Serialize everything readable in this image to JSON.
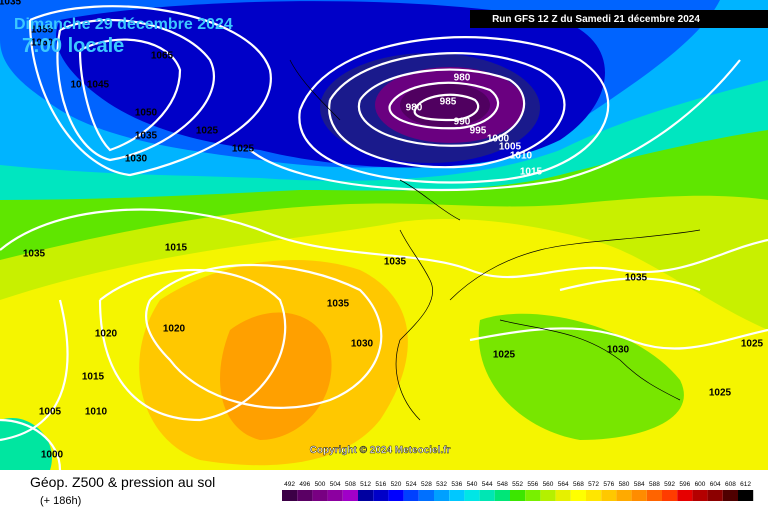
{
  "header": {
    "date": "Dimanche 29 décembre 2024",
    "time": "7:00 locale",
    "run": "Run GFS 12 Z du Samedi 21 décembre 2024"
  },
  "copyright": "Copyright © 2024 Meteociel.fr",
  "footer": {
    "title": "Géop. Z500 & pression au sol",
    "lead": "(+ 186h)"
  },
  "colorbar": {
    "values": [
      492,
      496,
      500,
      504,
      508,
      512,
      516,
      520,
      524,
      528,
      532,
      536,
      540,
      544,
      548,
      552,
      556,
      560,
      564,
      568,
      572,
      576,
      580,
      584,
      588,
      592,
      596,
      600,
      604,
      608,
      612
    ],
    "colors": [
      "#3c0046",
      "#5a0064",
      "#780082",
      "#8c00a0",
      "#a000c8",
      "#0000a0",
      "#0000c8",
      "#0000ff",
      "#0040ff",
      "#0070ff",
      "#00a0ff",
      "#00c8ff",
      "#00e6e6",
      "#00e6b4",
      "#00e678",
      "#3ce600",
      "#78f000",
      "#b4f000",
      "#e6f000",
      "#ffff00",
      "#ffe600",
      "#ffc800",
      "#ffaa00",
      "#ff8c00",
      "#ff6400",
      "#ff3c00",
      "#e60000",
      "#b40000",
      "#8c0000",
      "#500000",
      "#000000"
    ]
  },
  "isobar_labels": [
    "1035",
    "1055",
    "1060",
    "1065",
    "10",
    "1045",
    "1050",
    "1035",
    "1030",
    "1025",
    "1025",
    "980",
    "980",
    "985",
    "990",
    "995",
    "1000",
    "1005",
    "1010",
    "1015",
    "1035",
    "1015",
    "1035",
    "1035",
    "1035",
    "1020",
    "1020",
    "1030",
    "1025",
    "1030",
    "1025",
    "1015",
    "1005",
    "1010",
    "1025",
    "1000"
  ]
}
